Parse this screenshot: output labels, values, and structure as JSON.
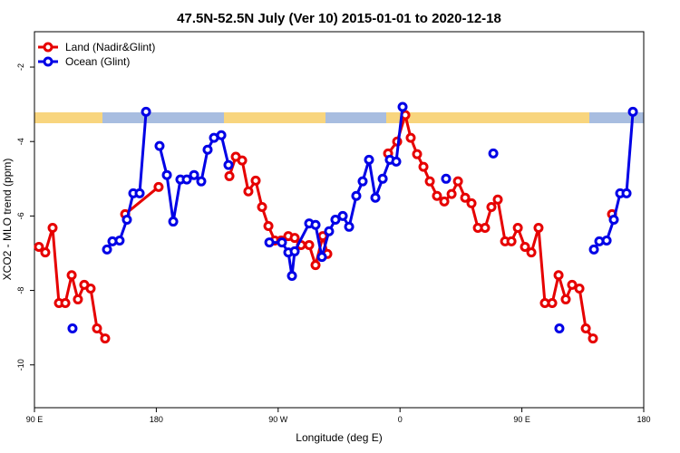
{
  "chart_data": {
    "type": "line",
    "title": "47.5N-52.5N July (Ver 10)   2015-01-01 to 2020-12-18",
    "xlabel": "Longitude (deg E)",
    "ylabel": "XCO2 - MLO trend (ppm)",
    "xlim": [
      90,
      540
    ],
    "xticks": [
      {
        "value": 90,
        "label": "90 E"
      },
      180,
      {
        "value": 270,
        "label": "90 W"
      },
      {
        "value": 360,
        "label": "0"
      },
      {
        "value": 450,
        "label": "90 E"
      },
      180
    ],
    "ylim": [
      -11.15,
      -1.05
    ],
    "yticks": [
      -2,
      -4,
      -6,
      -8,
      -10
    ],
    "legend": "top-left",
    "series": [
      {
        "name": "Land (Nadir&Glint)",
        "color": "#e60000",
        "x": [
          93.3,
          98.0,
          103.4,
          108.1,
          112.8,
          117.5,
          122.1,
          126.8,
          131.5,
          136.2,
          142.2,
          null,
          157.0,
          181.7,
          null,
          234.0,
          238.7,
          243.4,
          248.0,
          253.4,
          258.1,
          262.8,
          267.5,
          272.2,
          277.5,
          282.2,
          286.9,
          292.9,
          297.6,
          303.0,
          306.3,
          null,
          351.2,
          357.9,
          363.9,
          367.9,
          372.6,
          377.3,
          382.0,
          387.3,
          392.7,
          398.1,
          402.8,
          408.1,
          412.8,
          417.5,
          422.8,
          427.5,
          432.2,
          437.6,
          442.3,
          447.0,
          452.3,
          457.0,
          462.3,
          467.0,
          472.4,
          477.1,
          482.4,
          487.1,
          492.5,
          497.2,
          502.5,
          null,
          516.6
        ],
        "values": [
          -6.83,
          -6.98,
          -6.32,
          -8.34,
          -8.34,
          -7.59,
          -8.24,
          -7.85,
          -7.95,
          -9.02,
          -9.29,
          null,
          -5.95,
          -5.22,
          null,
          -4.93,
          -4.41,
          -4.51,
          -5.34,
          -5.05,
          -5.76,
          -6.27,
          -6.66,
          -6.66,
          -6.54,
          -6.59,
          -6.78,
          -6.78,
          -7.32,
          -6.54,
          -7.02,
          null,
          -4.32,
          -4.0,
          -3.29,
          -3.9,
          -4.34,
          -4.68,
          -5.07,
          -5.46,
          -5.61,
          -5.41,
          -5.07,
          -5.51,
          -5.66,
          -6.32,
          -6.32,
          -5.76,
          -5.56,
          -6.68,
          -6.68,
          -6.32,
          -6.83,
          -6.98,
          -6.32,
          -8.34,
          -8.34,
          -7.59,
          -8.24,
          -7.85,
          -7.95,
          -9.02,
          -9.29,
          null,
          -5.95
        ]
      },
      {
        "name": "Ocean (Glint)",
        "color": "#0000e6",
        "x": [
          118.1,
          null,
          143.6,
          147.6,
          152.9,
          158.3,
          163.0,
          167.7,
          172.4,
          null,
          182.4,
          187.8,
          192.5,
          197.8,
          202.5,
          207.9,
          213.2,
          217.9,
          222.6,
          228.0,
          233.3,
          null,
          263.5,
          272.8,
          277.5,
          280.2,
          282.2,
          292.9,
          297.6,
          302.3,
          307.6,
          312.3,
          317.7,
          322.4,
          327.7,
          332.4,
          337.1,
          341.8,
          347.2,
          352.5,
          357.2,
          361.9,
          null,
          394.0,
          null,
          428.9,
          null,
          477.7,
          null,
          503.2,
          507.2,
          512.6,
          517.9,
          522.6,
          527.3,
          532.0
        ],
        "values": [
          -9.02,
          null,
          -6.9,
          -6.68,
          -6.66,
          -6.1,
          -5.39,
          -5.39,
          -3.2,
          null,
          -4.12,
          -4.9,
          -6.15,
          -5.02,
          -5.02,
          -4.9,
          -5.07,
          -4.22,
          -3.9,
          -3.83,
          -4.63,
          null,
          -6.71,
          -6.71,
          -6.98,
          -7.61,
          -6.95,
          -6.2,
          -6.24,
          -7.1,
          -6.41,
          -6.1,
          -6.0,
          -6.29,
          -5.46,
          -5.07,
          -4.49,
          -5.51,
          -5.0,
          -4.49,
          -4.54,
          -3.07,
          null,
          -5.0,
          null,
          -4.32,
          null,
          -9.02,
          null,
          -6.9,
          -6.68,
          -6.66,
          -6.1,
          -5.39,
          -5.39,
          -3.2
        ]
      }
    ]
  }
}
